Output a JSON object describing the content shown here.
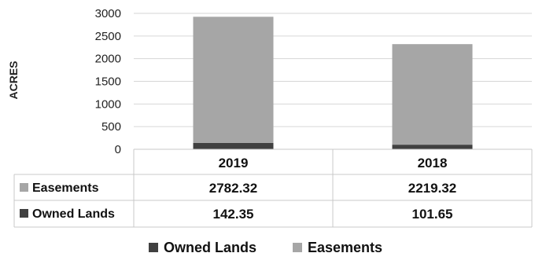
{
  "chart_data": {
    "type": "bar",
    "stacked": true,
    "categories": [
      "2019",
      "2018"
    ],
    "series": [
      {
        "name": "Owned Lands",
        "values": [
          142.35,
          101.65
        ],
        "color": "#404040"
      },
      {
        "name": "Easements",
        "values": [
          2782.32,
          2219.32
        ],
        "color": "#a6a6a6"
      }
    ],
    "table_rows": [
      {
        "name": "Easements",
        "display": [
          "2782.32",
          "2219.32"
        ]
      },
      {
        "name": "Owned Lands",
        "display": [
          "142.35",
          "101.65"
        ]
      }
    ],
    "title": "",
    "xlabel": "",
    "ylabel": "ACRES",
    "ylim": [
      0,
      3000
    ],
    "yticks": [
      0,
      500,
      1000,
      1500,
      2000,
      2500,
      3000
    ],
    "grid": true,
    "legend": [
      "Owned Lands",
      "Easements"
    ],
    "legend_position": "bottom",
    "data_table": true
  }
}
